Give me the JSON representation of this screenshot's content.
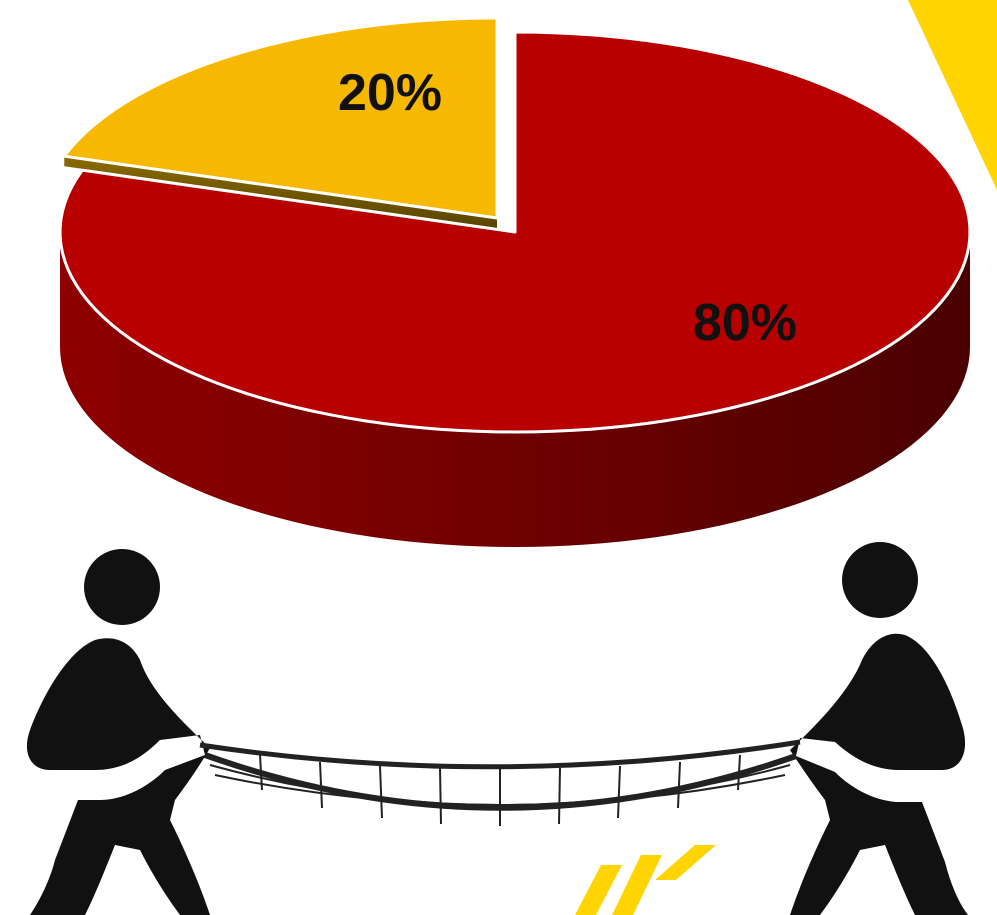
{
  "chart_data": {
    "type": "pie",
    "title": "",
    "slices": [
      {
        "label": "20%",
        "value": 20,
        "color": "#F6B800"
      },
      {
        "label": "80%",
        "value": 80,
        "color": "#B80000"
      }
    ],
    "style": "3d-exploded",
    "legend": "none"
  },
  "illustration": {
    "description_icon": "two-people-carrying-net-icon",
    "accent_color": "#FFD400"
  }
}
